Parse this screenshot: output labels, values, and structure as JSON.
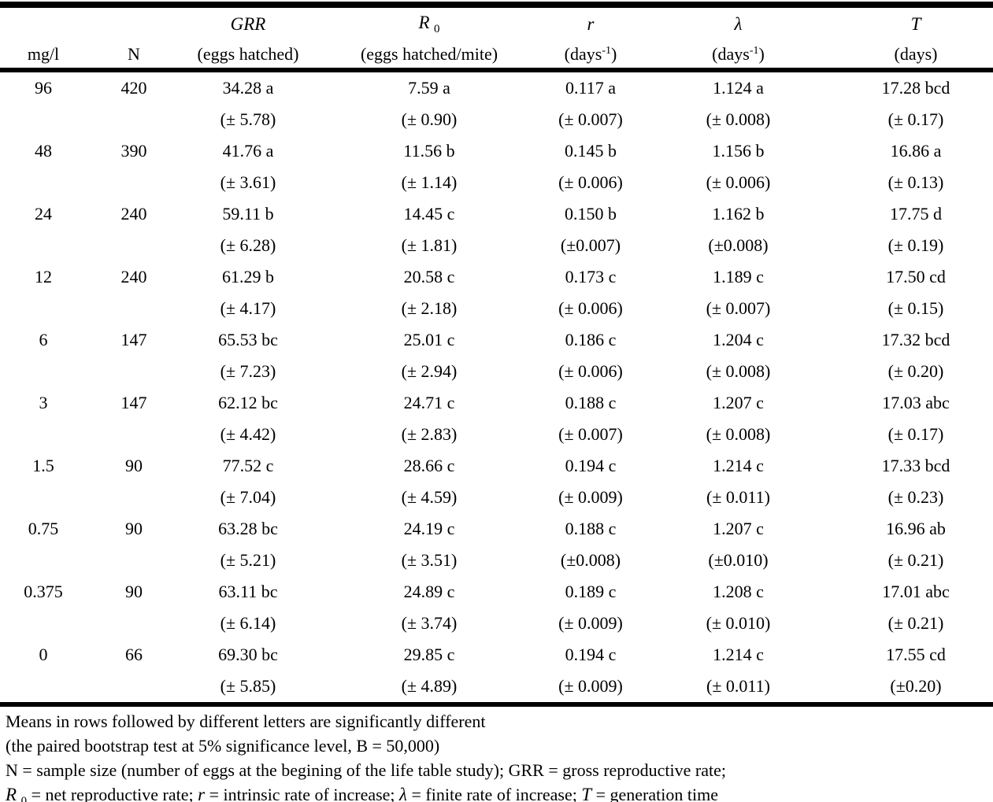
{
  "table": {
    "header": {
      "dose_label": "mg/l",
      "n_label": "N",
      "grr_sym": "GRR",
      "grr_unit": "(eggs hatched)",
      "r0_sym": "R",
      "r0_sub": "0",
      "r0_unit": "(eggs hatched/mite)",
      "r_sym": "r",
      "r_unit_base": "(days",
      "r_unit_sup": "-1",
      "r_unit_close": ")",
      "lambda_sym": "λ",
      "lambda_unit_base": "(days",
      "lambda_unit_sup": "-1",
      "lambda_unit_close": ")",
      "t_sym": "T",
      "t_unit": "(days)"
    },
    "rows": [
      {
        "dose": "96",
        "n": "420",
        "grr": "34.28 a",
        "grr_se": "(± 5.78)",
        "r0": "7.59 a",
        "r0_se": "(± 0.90)",
        "r": "0.117 a",
        "r_se": "(± 0.007)",
        "lambda": "1.124 a",
        "lambda_se": "(± 0.008)",
        "t": "17.28 bcd",
        "t_se": "(± 0.17)"
      },
      {
        "dose": "48",
        "n": "390",
        "grr": "41.76 a",
        "grr_se": "(± 3.61)",
        "r0": "11.56 b",
        "r0_se": "(± 1.14)",
        "r": "0.145 b",
        "r_se": "(± 0.006)",
        "lambda": "1.156 b",
        "lambda_se": "(± 0.006)",
        "t": "16.86 a",
        "t_se": "(± 0.13)"
      },
      {
        "dose": "24",
        "n": "240",
        "grr": "59.11 b",
        "grr_se": "(± 6.28)",
        "r0": "14.45 c",
        "r0_se": "(± 1.81)",
        "r": "0.150 b",
        "r_se": "(±0.007)",
        "lambda": "1.162 b",
        "lambda_se": "(±0.008)",
        "t": "17.75 d",
        "t_se": "(± 0.19)"
      },
      {
        "dose": "12",
        "n": "240",
        "grr": "61.29 b",
        "grr_se": "(± 4.17)",
        "r0": "20.58 c",
        "r0_se": "(± 2.18)",
        "r": "0.173 c",
        "r_se": "(± 0.006)",
        "lambda": "1.189 c",
        "lambda_se": "(± 0.007)",
        "t": "17.50 cd",
        "t_se": "(± 0.15)"
      },
      {
        "dose": "6",
        "n": "147",
        "grr": "65.53 bc",
        "grr_se": "(± 7.23)",
        "r0": "25.01 c",
        "r0_se": "(± 2.94)",
        "r": "0.186 c",
        "r_se": "(± 0.006)",
        "lambda": "1.204 c",
        "lambda_se": "(± 0.008)",
        "t": "17.32 bcd",
        "t_se": "(± 0.20)"
      },
      {
        "dose": "3",
        "n": "147",
        "grr": "62.12 bc",
        "grr_se": "(± 4.42)",
        "r0": "24.71 c",
        "r0_se": "(± 2.83)",
        "r": "0.188 c",
        "r_se": "(± 0.007)",
        "lambda": "1.207 c",
        "lambda_se": "(± 0.008)",
        "t": "17.03 abc",
        "t_se": "(± 0.17)"
      },
      {
        "dose": "1.5",
        "n": "90",
        "grr": "77.52 c",
        "grr_se": "(± 7.04)",
        "r0": "28.66 c",
        "r0_se": "(± 4.59)",
        "r": "0.194 c",
        "r_se": "(± 0.009)",
        "lambda": "1.214 c",
        "lambda_se": "(± 0.011)",
        "t": "17.33 bcd",
        "t_se": "(± 0.23)"
      },
      {
        "dose": "0.75",
        "n": "90",
        "grr": "63.28 bc",
        "grr_se": "(± 5.21)",
        "r0": "24.19 c",
        "r0_se": "(± 3.51)",
        "r": "0.188 c",
        "r_se": "(±0.008)",
        "lambda": "1.207 c",
        "lambda_se": "(±0.010)",
        "t": "16.96 ab",
        "t_se": "(± 0.21)"
      },
      {
        "dose": "0.375",
        "n": "90",
        "grr": "63.11 bc",
        "grr_se": "(± 6.14)",
        "r0": "24.89 c",
        "r0_se": "(± 3.74)",
        "r": "0.189 c",
        "r_se": "(± 0.009)",
        "lambda": "1.208 c",
        "lambda_se": "(± 0.010)",
        "t": "17.01 abc",
        "t_se": "(± 0.21)"
      },
      {
        "dose": "0",
        "n": "66",
        "grr": "69.30 bc",
        "grr_se": "(± 5.85)",
        "r0": "29.85 c",
        "r0_se": "(± 4.89)",
        "r": "0.194 c",
        "r_se": "(± 0.009)",
        "lambda": "1.214 c",
        "lambda_se": "(± 0.011)",
        "t": "17.55 cd",
        "t_se": "(±0.20)"
      }
    ]
  },
  "footnotes": {
    "line1": "Means in rows followed by different letters are significantly different",
    "line2": "(the paired bootstrap test at 5% significance level, B = 50,000)",
    "line3": "N = sample size (number of eggs at the begining of the life table study); GRR = gross reproductive rate;",
    "line4": {
      "r0_sym": "R",
      "r0_sub": "0",
      "seg1": " = net reproductive rate; ",
      "r_sym": "r",
      "seg2": " = intrinsic rate of increase; ",
      "lambda_sym": "λ",
      "seg3": " = finite rate of increase; ",
      "t_sym": "T",
      "seg4": " = generation time"
    }
  }
}
